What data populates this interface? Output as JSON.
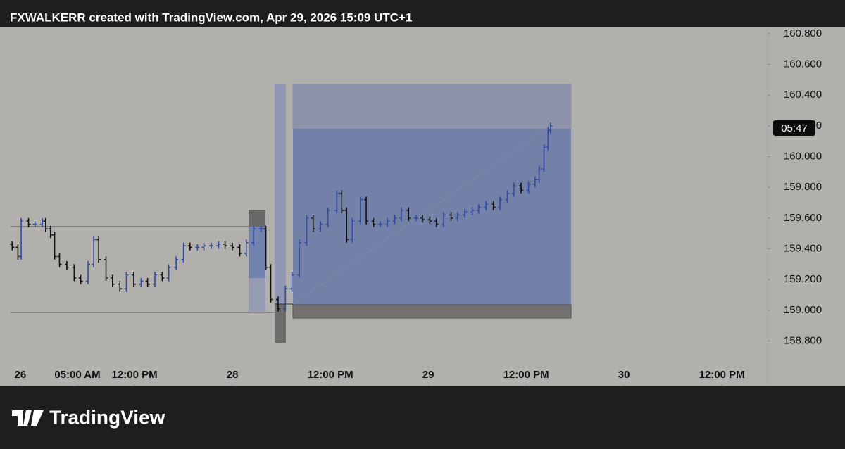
{
  "header": {
    "text": "FXWALKERR created with TradingView.com, Apr 29, 2026 15:09 UTC+1"
  },
  "footer": {
    "logo_text": "TradingView"
  },
  "chart_data": {
    "type": "ohlc",
    "up_color": "#2f4a9e",
    "down_color": "#111111",
    "price_badge": "05:47",
    "xlim": [
      -27.2,
      65.6
    ],
    "ylim": [
      158.66,
      160.85
    ],
    "xticks": [
      {
        "value": -26,
        "label": "26"
      },
      {
        "value": -19,
        "label": "05:00 AM"
      },
      {
        "value": -12,
        "label": "12:00 PM"
      },
      {
        "value": 0,
        "label": "28"
      },
      {
        "value": 12,
        "label": "12:00 PM"
      },
      {
        "value": 24,
        "label": "29"
      },
      {
        "value": 36,
        "label": "12:00 PM"
      },
      {
        "value": 48,
        "label": "30"
      },
      {
        "value": 60,
        "label": "12:00 PM"
      }
    ],
    "yticks": [
      {
        "value": 158.8,
        "label": "158.800"
      },
      {
        "value": 159.0,
        "label": "159.000"
      },
      {
        "value": 159.2,
        "label": "159.200"
      },
      {
        "value": 159.4,
        "label": "159.400"
      },
      {
        "value": 159.6,
        "label": "159.600"
      },
      {
        "value": 159.8,
        "label": "159.800"
      },
      {
        "value": 160.0,
        "label": "160.000"
      },
      {
        "value": 160.2,
        "label": "160.200"
      },
      {
        "value": 160.4,
        "label": "160.400"
      },
      {
        "value": 160.6,
        "label": "160.600"
      },
      {
        "value": 160.8,
        "label": "160.800"
      }
    ],
    "x": [
      -27.0,
      -26.3,
      -25.9,
      -25.0,
      -24.2,
      -23.3,
      -22.9,
      -22.3,
      -21.8,
      -21.2,
      -20.3,
      -19.4,
      -18.6,
      -17.7,
      -17.0,
      -16.4,
      -15.5,
      -14.7,
      -13.8,
      -13.0,
      -12.1,
      -11.2,
      -10.4,
      -9.5,
      -8.6,
      -7.8,
      -6.9,
      -6.0,
      -5.2,
      -4.3,
      -3.5,
      -2.6,
      -1.7,
      -0.9,
      0.0,
      0.9,
      1.7,
      2.6,
      3.5,
      4.1,
      4.7,
      5.6,
      6.5,
      7.3,
      8.2,
      9.1,
      9.9,
      10.8,
      11.7,
      12.8,
      13.4,
      14.0,
      14.7,
      15.7,
      16.4,
      17.3,
      18.1,
      19.0,
      19.9,
      20.7,
      21.6,
      22.5,
      23.3,
      24.2,
      25.0,
      25.9,
      26.8,
      27.6,
      28.5,
      29.4,
      30.2,
      31.1,
      32.0,
      32.8,
      33.7,
      34.5,
      35.4,
      36.3,
      37.1,
      37.6,
      38.2,
      38.7,
      39.0
    ],
    "open": [
      159.43,
      159.41,
      159.35,
      159.58,
      159.56,
      159.56,
      159.58,
      159.53,
      159.49,
      159.35,
      159.3,
      159.28,
      159.21,
      159.19,
      159.3,
      159.46,
      159.33,
      159.21,
      159.17,
      159.14,
      159.23,
      159.17,
      159.19,
      159.17,
      159.23,
      159.21,
      159.28,
      159.33,
      159.42,
      159.41,
      159.41,
      159.42,
      159.42,
      159.43,
      159.42,
      159.41,
      159.37,
      159.44,
      159.53,
      159.53,
      159.28,
      159.07,
      159.01,
      159.14,
      159.23,
      159.44,
      159.6,
      159.53,
      159.56,
      159.65,
      159.76,
      159.65,
      159.46,
      159.58,
      159.72,
      159.58,
      159.56,
      159.56,
      159.58,
      159.6,
      159.65,
      159.6,
      159.6,
      159.59,
      159.58,
      159.56,
      159.62,
      159.6,
      159.62,
      159.64,
      159.65,
      159.67,
      159.69,
      159.67,
      159.72,
      159.76,
      159.81,
      159.78,
      159.82,
      159.85,
      159.92,
      160.06,
      160.17
    ],
    "high": [
      159.45,
      159.43,
      159.6,
      159.6,
      159.58,
      159.6,
      159.6,
      159.55,
      159.51,
      159.37,
      159.32,
      159.3,
      159.23,
      159.32,
      159.48,
      159.48,
      159.35,
      159.23,
      159.19,
      159.25,
      159.25,
      159.21,
      159.21,
      159.25,
      159.25,
      159.3,
      159.35,
      159.44,
      159.44,
      159.43,
      159.44,
      159.44,
      159.45,
      159.45,
      159.44,
      159.43,
      159.46,
      159.55,
      159.55,
      159.55,
      159.3,
      159.09,
      159.16,
      159.25,
      159.46,
      159.62,
      159.62,
      159.58,
      159.67,
      159.78,
      159.78,
      159.67,
      159.6,
      159.74,
      159.74,
      159.6,
      159.58,
      159.6,
      159.62,
      159.67,
      159.67,
      159.62,
      159.62,
      159.61,
      159.6,
      159.64,
      159.64,
      159.64,
      159.66,
      159.67,
      159.69,
      159.71,
      159.71,
      159.74,
      159.78,
      159.83,
      159.83,
      159.84,
      159.87,
      159.94,
      160.08,
      160.19,
      160.22
    ],
    "low": [
      159.39,
      159.33,
      159.33,
      159.54,
      159.54,
      159.54,
      159.51,
      159.47,
      159.33,
      159.28,
      159.26,
      159.19,
      159.17,
      159.17,
      159.28,
      159.31,
      159.19,
      159.15,
      159.12,
      159.12,
      159.15,
      159.15,
      159.15,
      159.15,
      159.19,
      159.19,
      159.26,
      159.31,
      159.39,
      159.39,
      159.39,
      159.4,
      159.4,
      159.4,
      159.39,
      159.35,
      159.35,
      159.42,
      159.51,
      159.26,
      159.05,
      158.99,
      158.99,
      159.12,
      159.21,
      159.42,
      159.51,
      159.51,
      159.54,
      159.63,
      159.63,
      159.44,
      159.44,
      159.56,
      159.56,
      159.54,
      159.54,
      159.54,
      159.56,
      159.58,
      159.58,
      159.58,
      159.57,
      159.56,
      159.54,
      159.54,
      159.58,
      159.58,
      159.6,
      159.62,
      159.63,
      159.65,
      159.65,
      159.65,
      159.7,
      159.74,
      159.76,
      159.76,
      159.8,
      159.83,
      159.9,
      160.04,
      160.15
    ],
    "close": [
      159.41,
      159.35,
      159.58,
      159.56,
      159.56,
      159.58,
      159.53,
      159.49,
      159.35,
      159.3,
      159.28,
      159.21,
      159.19,
      159.3,
      159.46,
      159.33,
      159.21,
      159.17,
      159.14,
      159.23,
      159.17,
      159.19,
      159.17,
      159.23,
      159.21,
      159.28,
      159.33,
      159.42,
      159.41,
      159.41,
      159.42,
      159.42,
      159.43,
      159.42,
      159.41,
      159.37,
      159.44,
      159.53,
      159.53,
      159.28,
      159.07,
      159.01,
      159.14,
      159.23,
      159.44,
      159.6,
      159.53,
      159.56,
      159.65,
      159.76,
      159.65,
      159.46,
      159.58,
      159.72,
      159.58,
      159.56,
      159.56,
      159.58,
      159.6,
      159.65,
      159.6,
      159.6,
      159.59,
      159.58,
      159.56,
      159.62,
      159.6,
      159.62,
      159.64,
      159.65,
      159.67,
      159.69,
      159.67,
      159.72,
      159.76,
      159.81,
      159.78,
      159.82,
      159.85,
      159.92,
      160.06,
      160.17,
      160.2
    ]
  }
}
